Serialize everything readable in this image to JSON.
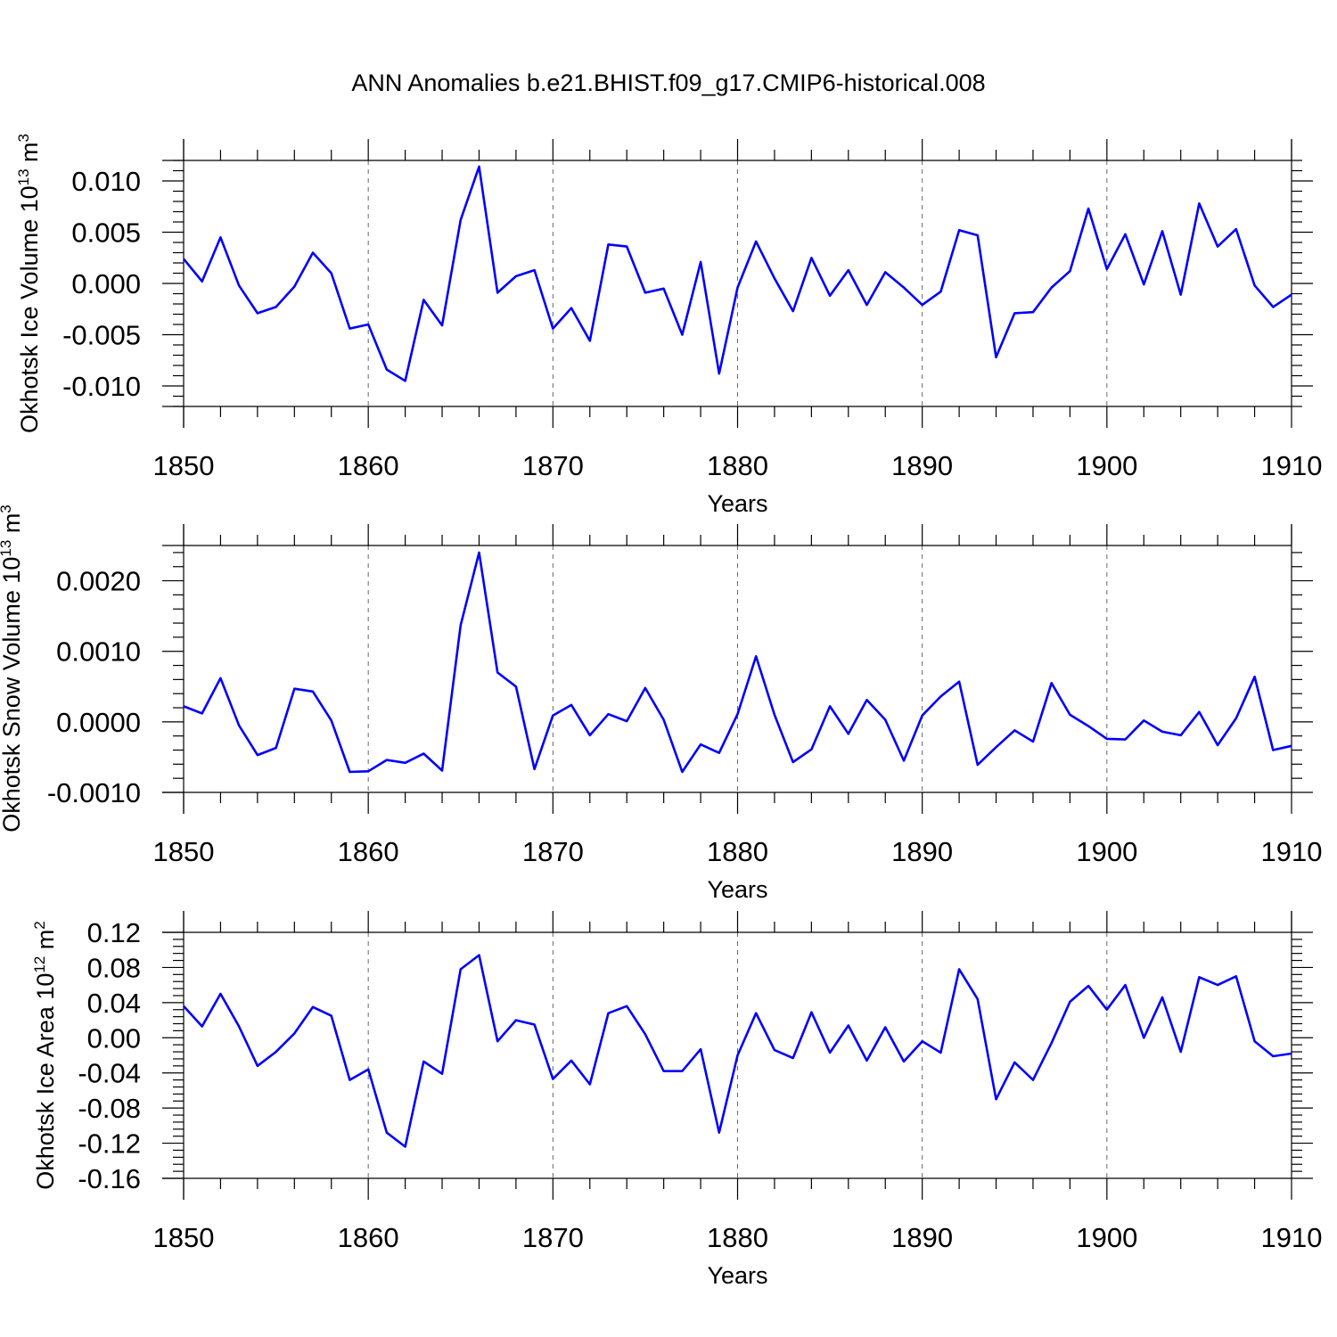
{
  "title": "ANN Anomalies b.e21.BHIST.f09_g17.CMIP6-historical.008",
  "colors": {
    "series": "#0000ff",
    "axis": "#000000",
    "grid": "#666666"
  },
  "chart_data": [
    {
      "type": "line",
      "title": "",
      "ylabel": {
        "text": "Okhotsk Ice Volume 10",
        "sup": "13",
        "unit": " m",
        "unit_sup": "3"
      },
      "xlabel": "Years",
      "xlim": [
        1850,
        1910
      ],
      "ylim": [
        -0.012,
        0.012
      ],
      "xticks": [
        1850,
        1860,
        1870,
        1880,
        1890,
        1900,
        1910
      ],
      "yticks": [
        -0.01,
        -0.005,
        0.0,
        0.005,
        0.01
      ],
      "ytick_labels": [
        "-0.010",
        "-0.005",
        "0.000",
        "0.005",
        "0.010"
      ],
      "x_grid": true,
      "years_start": 1850,
      "values": [
        0.0024,
        0.0002,
        0.0045,
        -0.0002,
        -0.0029,
        -0.0023,
        -0.0003,
        0.003,
        0.001,
        -0.0044,
        -0.004,
        -0.0084,
        -0.0095,
        -0.0016,
        -0.0041,
        0.0062,
        0.0114,
        -0.0009,
        0.0007,
        0.0013,
        -0.0044,
        -0.0024,
        -0.0056,
        0.0038,
        0.0036,
        -0.0009,
        -0.0005,
        -0.005,
        0.0021,
        -0.0088,
        -0.0004,
        0.0041,
        0.0005,
        -0.0027,
        0.0025,
        -0.0012,
        0.0013,
        -0.0021,
        0.0011,
        -0.0004,
        -0.0021,
        -0.0008,
        0.0052,
        0.0047,
        -0.0072,
        -0.0029,
        -0.0028,
        -0.0004,
        0.0012,
        0.0073,
        0.0014,
        0.0048,
        -0.0001,
        0.0051,
        -0.0011,
        0.0078,
        0.0036,
        0.0053,
        -0.0002,
        -0.0023,
        -0.0011
      ]
    },
    {
      "type": "line",
      "title": "",
      "ylabel": {
        "text": "Okhotsk Snow Volume 10",
        "sup": "13",
        "unit": " m",
        "unit_sup": "3"
      },
      "xlabel": "Years",
      "xlim": [
        1850,
        1910
      ],
      "ylim": [
        -0.001,
        0.0025
      ],
      "xticks": [
        1850,
        1860,
        1870,
        1880,
        1890,
        1900,
        1910
      ],
      "yticks": [
        -0.001,
        0.0,
        0.001,
        0.002
      ],
      "ytick_labels": [
        "-0.0010",
        "0.0000",
        "0.0010",
        "0.0020"
      ],
      "x_grid": true,
      "years_start": 1850,
      "values": [
        0.00022,
        0.00012,
        0.00062,
        -5e-05,
        -0.00047,
        -0.00037,
        0.00047,
        0.00043,
        2e-05,
        -0.00071,
        -0.0007,
        -0.00054,
        -0.00058,
        -0.00045,
        -0.00069,
        0.00137,
        0.0024,
        0.0007,
        0.0005,
        -0.00067,
        9e-05,
        0.00024,
        -0.00019,
        0.00011,
        1e-05,
        0.00048,
        3e-05,
        -0.00071,
        -0.00032,
        -0.00044,
        0.00011,
        0.00093,
        0.0001,
        -0.00057,
        -0.00039,
        0.00022,
        -0.00017,
        0.00031,
        3e-05,
        -0.00055,
        9e-05,
        0.00036,
        0.00057,
        -0.00061,
        -0.00036,
        -0.00012,
        -0.00028,
        0.00055,
        0.0001,
        -6e-05,
        -0.00024,
        -0.00025,
        2e-05,
        -0.00014,
        -0.00019,
        0.00014,
        -0.00033,
        5e-05,
        0.00064,
        -0.0004,
        -0.00034
      ]
    },
    {
      "type": "line",
      "title": "",
      "ylabel": {
        "text": "Okhotsk Ice Area 10",
        "sup": "12",
        "unit": " m",
        "unit_sup": "2"
      },
      "xlabel": "Years",
      "xlim": [
        1850,
        1910
      ],
      "ylim": [
        -0.16,
        0.12
      ],
      "xticks": [
        1850,
        1860,
        1870,
        1880,
        1890,
        1900,
        1910
      ],
      "yticks": [
        -0.16,
        -0.12,
        -0.08,
        -0.04,
        0.0,
        0.04,
        0.08,
        0.12
      ],
      "ytick_labels": [
        "-0.16",
        "-0.12",
        "-0.08",
        "-0.04",
        "0.00",
        "0.04",
        "0.08",
        "0.12"
      ],
      "x_grid": true,
      "years_start": 1850,
      "values": [
        0.036,
        0.013,
        0.05,
        0.013,
        -0.032,
        -0.016,
        0.005,
        0.035,
        0.025,
        -0.048,
        -0.036,
        -0.108,
        -0.124,
        -0.027,
        -0.041,
        0.078,
        0.094,
        -0.004,
        0.02,
        0.015,
        -0.047,
        -0.026,
        -0.053,
        0.028,
        0.036,
        0.004,
        -0.038,
        -0.038,
        -0.013,
        -0.108,
        -0.02,
        0.028,
        -0.014,
        -0.023,
        0.029,
        -0.017,
        0.014,
        -0.026,
        0.012,
        -0.027,
        -0.004,
        -0.017,
        0.078,
        0.044,
        -0.07,
        -0.028,
        -0.048,
        -0.006,
        0.041,
        0.059,
        0.032,
        0.06,
        0.0,
        0.046,
        -0.016,
        0.069,
        0.06,
        0.07,
        -0.004,
        -0.021,
        -0.018
      ]
    }
  ]
}
